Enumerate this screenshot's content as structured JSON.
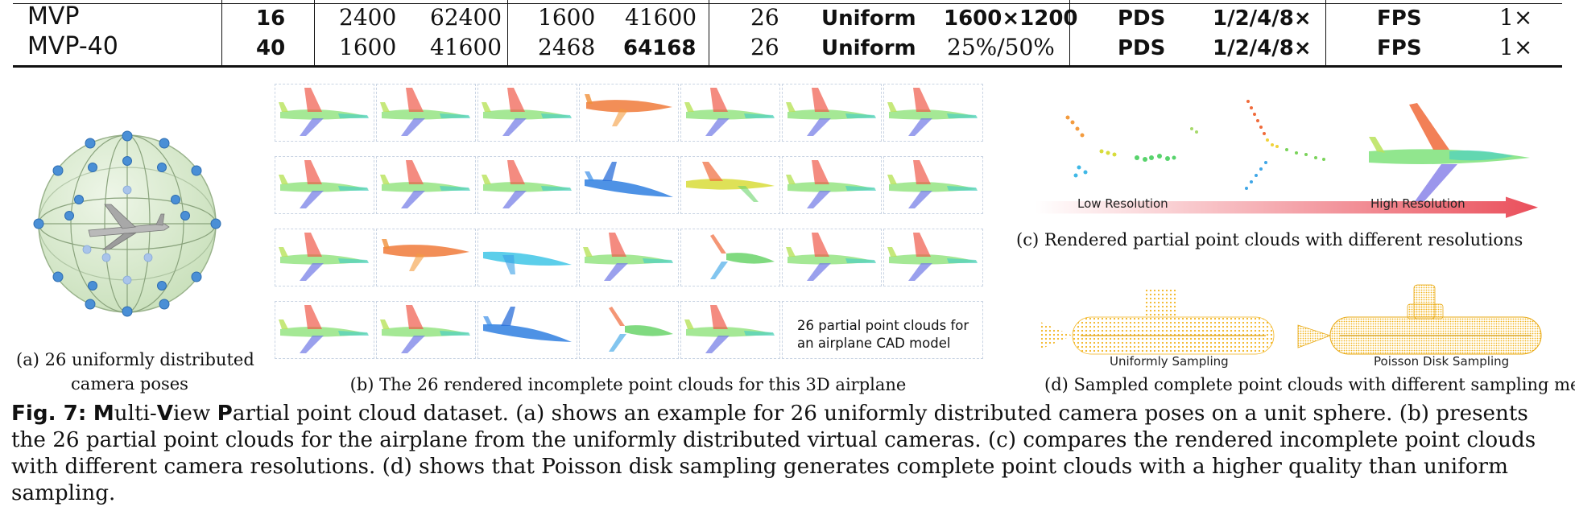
{
  "table": {
    "rows": [
      {
        "name": "MVP",
        "c1": "16",
        "c2": "2400",
        "c3": "62400",
        "c4": "1600",
        "c5": "41600",
        "c6": "26",
        "c7": "Uniform",
        "c8": "1600×1200",
        "c9": "PDS",
        "c10": "1/2/4/8×",
        "c11": "FPS",
        "c12": "1×"
      },
      {
        "name": "MVP-40",
        "c1": "40",
        "c2": "1600",
        "c3": "41600",
        "c4": "2468",
        "c5": "64168",
        "c6": "26",
        "c7": "Uniform",
        "c8": "25%/50%",
        "c9": "PDS",
        "c10": "1/2/4/8×",
        "c11": "FPS",
        "c12": "1×"
      }
    ]
  },
  "panel_a": {
    "caption_line1": "(a) 26 uniformly distributed",
    "caption_line2": "camera poses"
  },
  "panel_b": {
    "caption": "(b) The 26 rendered incomplete point clouds for this 3D airplane",
    "note_line1": "26 partial point clouds for",
    "note_line2": "an airplane CAD model"
  },
  "panel_c": {
    "low_label": "Low Resolution",
    "high_label": "High Resolution",
    "caption": "(c) Rendered partial point clouds with different resolutions"
  },
  "panel_d": {
    "uniform_label": "Uniformly Sampling",
    "poisson_label": "Poisson Disk Sampling",
    "caption": "(d) Sampled complete point clouds with different sampling methods"
  },
  "figure_caption": {
    "label": "Fig. 7:",
    "m": "M",
    "ulti": "ulti-",
    "v": "V",
    "iew": "iew ",
    "p": "P",
    "rest": "artial point cloud dataset. (a) shows an example for 26 uniformly distributed camera poses on a unit sphere. (b) presents the 26 partial point clouds for the airplane from the uniformly distributed virtual cameras. (c) compares the rendered incomplete point clouds with different camera resolutions. (d) shows that Poisson disk sampling generates complete point clouds with a higher quality than uniform sampling."
  },
  "colors": {
    "sphere": "#dcebd2",
    "camera": "#4a8fd6",
    "arrow": "#ea5560",
    "submarine": "#f2b41f"
  }
}
